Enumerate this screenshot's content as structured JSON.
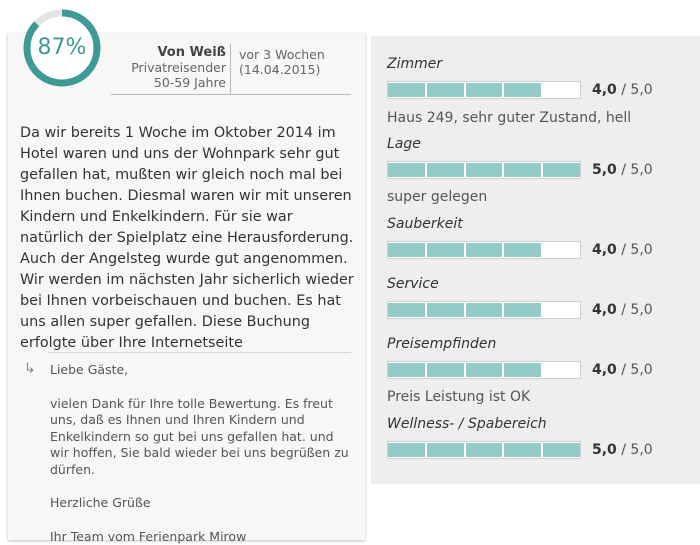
{
  "review": {
    "score_percent": "87%",
    "score_fraction": 0.87,
    "accent_color": "#3e9a95",
    "author": {
      "name": "Von Weiß",
      "type": "Privatreisender",
      "age": "50-59 Jahre"
    },
    "date": {
      "relative": "vor 3 Wochen",
      "absolute": "(14.04.2015)"
    },
    "text": "Da wir bereits 1 Woche im Oktober 2014 im Hotel waren und uns der Wohnpark sehr gut gefallen hat, mußten wir gleich noch mal bei Ihnen buchen. Diesmal waren wir mit unseren Kindern und Enkelkindern. Für sie war natürlich der Spielplatz eine Herausforderung. Auch der Angelsteg wurde gut angenommen. Wir werden im nächsten Jahr sicherlich wieder bei Ihnen vorbeischauen und buchen. Es hat uns allen super gefallen. Diese Buchung erfolgte über Ihre Internetseite",
    "reply": {
      "arrow_icon": "reply-arrow-icon",
      "greeting": "Liebe Gäste,",
      "body": "vielen Dank für Ihre tolle Bewertung. Es freut uns, daß es Ihnen und Ihren Kindern und Enkelkindern so gut bei uns gefallen hat. und wir hoffen, Sie bald wieder bei uns begrüßen zu dürfen.",
      "closing": "Herzliche Grüße",
      "signature": "Ihr Team vom Ferienpark Mirow"
    }
  },
  "ratings": {
    "bar_color": "#92cbc7",
    "max_label": "/ 5,0",
    "categories": [
      {
        "label": "Zimmer",
        "value": 4.0,
        "value_label": "4,0",
        "comment": "Haus 249, sehr guter Zustand, hell"
      },
      {
        "label": "Lage",
        "value": 5.0,
        "value_label": "5,0",
        "comment": "super gelegen"
      },
      {
        "label": "Sauberkeit",
        "value": 4.0,
        "value_label": "4,0",
        "comment": ""
      },
      {
        "label": "Service",
        "value": 4.0,
        "value_label": "4,0",
        "comment": ""
      },
      {
        "label": "Preisempfinden",
        "value": 4.0,
        "value_label": "4,0",
        "comment": "Preis Leistung ist OK"
      },
      {
        "label": "Wellness- / Spabereich",
        "value": 5.0,
        "value_label": "5,0",
        "comment": ""
      }
    ]
  }
}
